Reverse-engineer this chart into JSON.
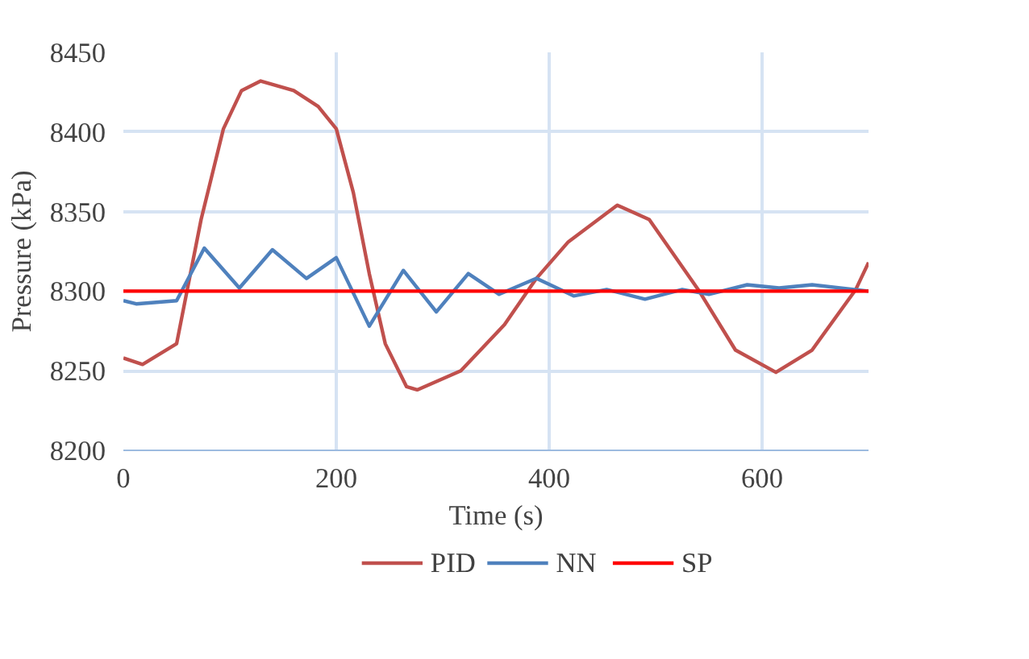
{
  "chart_data": {
    "type": "line",
    "xlabel": "Time (s)",
    "ylabel": "Pressure (kPa)",
    "xlim": [
      0,
      700
    ],
    "ylim": [
      8200,
      8450
    ],
    "xticks": [
      0,
      200,
      400,
      600
    ],
    "yticks": [
      8200,
      8250,
      8300,
      8350,
      8400,
      8450
    ],
    "grid": true,
    "legend": "bottom",
    "line_style": "solid",
    "marker": "none",
    "series": [
      {
        "name": "PID",
        "color": "#c0504d",
        "x": [
          0,
          18,
          50,
          73,
          94,
          111,
          129,
          160,
          183,
          200,
          216,
          231,
          246,
          266,
          276,
          317,
          358,
          388,
          418,
          464,
          494,
          540,
          575,
          613,
          647,
          688,
          700
        ],
        "values": [
          8258,
          8254,
          8267,
          8345,
          8402,
          8426,
          8432,
          8426,
          8416,
          8402,
          8362,
          8311,
          8267,
          8240,
          8238,
          8250,
          8279,
          8308,
          8331,
          8354,
          8345,
          8301,
          8263,
          8249,
          8263,
          8301,
          8318
        ]
      },
      {
        "name": "NN",
        "color": "#4f81bd",
        "x": [
          0,
          12,
          50,
          76,
          109,
          140,
          172,
          200,
          231,
          263,
          294,
          324,
          353,
          388,
          423,
          454,
          490,
          525,
          550,
          586,
          616,
          647,
          700
        ],
        "values": [
          8294,
          8292,
          8294,
          8327,
          8302,
          8326,
          8308,
          8321,
          8278,
          8313,
          8287,
          8311,
          8298,
          8308,
          8297,
          8301,
          8295,
          8301,
          8298,
          8304,
          8302,
          8304,
          8300
        ]
      },
      {
        "name": "SP",
        "color": "#ff0000",
        "x": [
          0,
          700
        ],
        "values": [
          8300,
          8300
        ]
      }
    ]
  }
}
